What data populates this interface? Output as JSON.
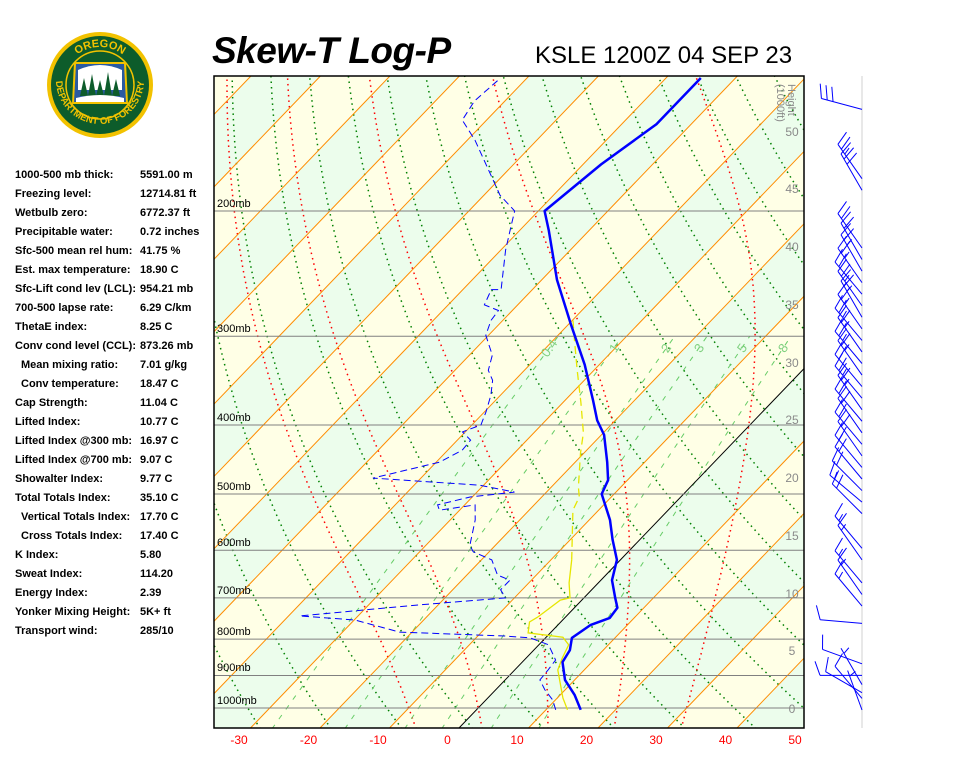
{
  "logo": {
    "top_text": "OREGON",
    "bottom_text": "DEPARTMENT OF FORESTRY"
  },
  "header": {
    "title": "Skew-T Log-P",
    "station": "KSLE 1200Z 04 SEP 23"
  },
  "stats": [
    {
      "label": "1000-500 mb thick:",
      "value": "5591.00 m",
      "indent": false
    },
    {
      "label": "Freezing level:",
      "value": "12714.81 ft",
      "indent": false
    },
    {
      "label": "Wetbulb zero:",
      "value": "6772.37 ft",
      "indent": false
    },
    {
      "label": "Precipitable water:",
      "value": "0.72 inches",
      "indent": false
    },
    {
      "label": "Sfc-500 mean rel hum:",
      "value": "41.75 %",
      "indent": false
    },
    {
      "label": "Est. max temperature:",
      "value": "18.90 C",
      "indent": false
    },
    {
      "label": "Sfc-Lift cond lev (LCL):",
      "value": "954.21 mb",
      "indent": false
    },
    {
      "label": "700-500 lapse rate:",
      "value": "6.29 C/km",
      "indent": false
    },
    {
      "label": "ThetaE index:",
      "value": "8.25 C",
      "indent": false
    },
    {
      "label": "Conv cond level (CCL):",
      "value": "873.26 mb",
      "indent": false
    },
    {
      "label": "Mean mixing ratio:",
      "value": "7.01 g/kg",
      "indent": true
    },
    {
      "label": "Conv temperature:",
      "value": "18.47 C",
      "indent": true
    },
    {
      "label": "Cap Strength:",
      "value": "11.04 C",
      "indent": false
    },
    {
      "label": "Lifted Index:",
      "value": "10.77 C",
      "indent": false
    },
    {
      "label": "Lifted Index @300 mb:",
      "value": "16.97 C",
      "indent": false
    },
    {
      "label": "Lifted Index @700 mb:",
      "value": "9.07 C",
      "indent": false
    },
    {
      "label": "Showalter Index:",
      "value": "9.77 C",
      "indent": false
    },
    {
      "label": "Total Totals Index:",
      "value": "35.10 C",
      "indent": false
    },
    {
      "label": "Vertical Totals Index:",
      "value": "17.70 C",
      "indent": true
    },
    {
      "label": "Cross Totals Index:",
      "value": "17.40 C",
      "indent": true
    },
    {
      "label": "K Index:",
      "value": "5.80",
      "indent": false
    },
    {
      "label": "Sweat Index:",
      "value": "114.20",
      "indent": false
    },
    {
      "label": "Energy Index:",
      "value": "2.39",
      "indent": false
    },
    {
      "label": "Yonker Mixing Height:",
      "value": "5K+ ft",
      "indent": false
    },
    {
      "label": "Transport wind:",
      "value": "285/10",
      "indent": false
    }
  ],
  "colors": {
    "isotherm": "#ff8c00",
    "zero_isotherm": "#000000",
    "band_a": "#ffffe6",
    "band_b": "#ecfdec",
    "dry_adiabat": "#008000",
    "moist_adiabat": "#ff0000",
    "mixing_ratio": "#66cc66",
    "temperature": "#0000ff",
    "dewpoint": "#0000ff",
    "wetbulb": "#e6e600",
    "isobar": "#808080",
    "wind": "#0000ff",
    "logo_green": "#0d5c2b",
    "logo_gold": "#f2c200"
  },
  "chart_data": {
    "type": "skew-t log-p",
    "pressure_levels": [
      {
        "p": 200,
        "label": "200mb"
      },
      {
        "p": 300,
        "label": "300mb"
      },
      {
        "p": 400,
        "label": "400mb"
      },
      {
        "p": 500,
        "label": "500mb"
      },
      {
        "p": 600,
        "label": "600mb"
      },
      {
        "p": 700,
        "label": "700mb"
      },
      {
        "p": 800,
        "label": "800mb"
      },
      {
        "p": 900,
        "label": "900mb"
      },
      {
        "p": 1000,
        "label": "1000mb"
      }
    ],
    "pressure_range_mb": [
      130,
      1065
    ],
    "temperature_ticks_c": [
      -30,
      -20,
      -10,
      0,
      10,
      20,
      30,
      40,
      50
    ],
    "height_axis": {
      "title": "Height",
      "unit": "(1000ft)",
      "ticks": [
        0,
        5,
        10,
        15,
        20,
        25,
        30,
        35,
        40,
        45,
        50
      ]
    },
    "mixing_ratio_lines": [
      {
        "w": 0.4,
        "label": "0.4"
      },
      {
        "w": 1,
        "label": "1"
      },
      {
        "w": 2,
        "label": "2"
      },
      {
        "w": 3,
        "label": "3"
      },
      {
        "w": 5,
        "label": "5"
      },
      {
        "w": 8,
        "label": "8"
      }
    ],
    "temperature": [
      [
        1006,
        15.0
      ],
      [
        959,
        12.1
      ],
      [
        913,
        8.6
      ],
      [
        862,
        5.8
      ],
      [
        829,
        5.2
      ],
      [
        797,
        3.8
      ],
      [
        764,
        4.7
      ],
      [
        747,
        6.5
      ],
      [
        723,
        6.2
      ],
      [
        700,
        4.5
      ],
      [
        661,
        1.6
      ],
      [
        619,
        -0.5
      ],
      [
        580,
        -3.9
      ],
      [
        544,
        -7.0
      ],
      [
        500,
        -11.8
      ],
      [
        478,
        -12.8
      ],
      [
        451,
        -15.4
      ],
      [
        413,
        -19.6
      ],
      [
        394,
        -22.6
      ],
      [
        369,
        -26.0
      ],
      [
        329,
        -32.1
      ],
      [
        289,
        -39.6
      ],
      [
        250,
        -47.8
      ],
      [
        213,
        -55.8
      ],
      [
        200,
        -59.1
      ],
      [
        172,
        -57.4
      ],
      [
        151,
        -55.0
      ],
      [
        130,
        -55.0
      ]
    ],
    "dewpoint": [
      [
        1006,
        11.4
      ],
      [
        974,
        9.6
      ],
      [
        943,
        7.1
      ],
      [
        913,
        5.0
      ],
      [
        884,
        4.8
      ],
      [
        856,
        4.5
      ],
      [
        815,
        1.4
      ],
      [
        797,
        -2.2
      ],
      [
        792,
        -6.1
      ],
      [
        782,
        -21.8
      ],
      [
        752,
        -29.9
      ],
      [
        742,
        -38.4
      ],
      [
        716,
        -22.6
      ],
      [
        700,
        -11.3
      ],
      [
        682,
        -13.1
      ],
      [
        661,
        -13.1
      ],
      [
        650,
        -15.6
      ],
      [
        619,
        -18.5
      ],
      [
        603,
        -22.3
      ],
      [
        590,
        -23.7
      ],
      [
        544,
        -26.4
      ],
      [
        518,
        -28.5
      ],
      [
        527,
        -32.9
      ],
      [
        518,
        -33.9
      ],
      [
        505,
        -30.3
      ],
      [
        497,
        -24.6
      ],
      [
        486,
        -30.6
      ],
      [
        475,
        -46.9
      ],
      [
        451,
        -39.5
      ],
      [
        434,
        -37.9
      ],
      [
        420,
        -38.1
      ],
      [
        409,
        -40.4
      ],
      [
        400,
        -38.7
      ],
      [
        383,
        -39.8
      ],
      [
        363,
        -41.4
      ],
      [
        346,
        -43.2
      ],
      [
        335,
        -45.2
      ],
      [
        319,
        -46.7
      ],
      [
        299,
        -50.4
      ],
      [
        285,
        -51.7
      ],
      [
        276,
        -52.0
      ],
      [
        271,
        -54.8
      ],
      [
        258,
        -55.9
      ],
      [
        258,
        -54.5
      ],
      [
        227,
        -59.3
      ],
      [
        209,
        -62.0
      ],
      [
        200,
        -63.4
      ],
      [
        190,
        -67.7
      ],
      [
        159,
        -78.9
      ],
      [
        149,
        -83.5
      ],
      [
        140,
        -84.4
      ],
      [
        130,
        -83.8
      ]
    ],
    "wetbulb": [
      [
        1006,
        13.1
      ],
      [
        968,
        10.8
      ],
      [
        884,
        6.2
      ],
      [
        851,
        5.2
      ],
      [
        815,
        4.3
      ],
      [
        795,
        2.4
      ],
      [
        784,
        -3.2
      ],
      [
        757,
        -4.5
      ],
      [
        745,
        -4.0
      ],
      [
        705,
        -3.1
      ],
      [
        700,
        -2.0
      ],
      [
        667,
        -4.2
      ],
      [
        619,
        -7.0
      ],
      [
        527,
        -13.7
      ],
      [
        505,
        -14.6
      ],
      [
        489,
        -16.1
      ],
      [
        438,
        -20.5
      ],
      [
        410,
        -22.9
      ],
      [
        372,
        -27.4
      ],
      [
        335,
        -32.4
      ],
      [
        301,
        -37.4
      ],
      [
        285,
        -39.9
      ]
    ],
    "winds_height_kft_dir_kt": [
      [
        0,
        340,
        5
      ],
      [
        1,
        320,
        10
      ],
      [
        1.5,
        300,
        10
      ],
      [
        2.2,
        330,
        5
      ],
      [
        3,
        270,
        10
      ],
      [
        4,
        290,
        10
      ],
      [
        7.5,
        275,
        10
      ],
      [
        9,
        320,
        15
      ],
      [
        10,
        325,
        15
      ],
      [
        11,
        320,
        15
      ],
      [
        13,
        325,
        15
      ],
      [
        14,
        320,
        15
      ],
      [
        17,
        315,
        20
      ],
      [
        18,
        310,
        15
      ],
      [
        19,
        315,
        20
      ],
      [
        20,
        320,
        20
      ],
      [
        21,
        320,
        20
      ],
      [
        22,
        325,
        20
      ],
      [
        23,
        320,
        20
      ],
      [
        24,
        325,
        20
      ],
      [
        25,
        320,
        20
      ],
      [
        26,
        325,
        25
      ],
      [
        27,
        320,
        25
      ],
      [
        28,
        320,
        20
      ],
      [
        29,
        325,
        25
      ],
      [
        30,
        320,
        25
      ],
      [
        31,
        325,
        25
      ],
      [
        32,
        320,
        25
      ],
      [
        33,
        325,
        25
      ],
      [
        34,
        330,
        25
      ],
      [
        35,
        325,
        25
      ],
      [
        36,
        320,
        20
      ],
      [
        37,
        325,
        25
      ],
      [
        38,
        330,
        25
      ],
      [
        39,
        330,
        20
      ],
      [
        40,
        325,
        20
      ],
      [
        45,
        330,
        30
      ],
      [
        46,
        325,
        25
      ],
      [
        52,
        285,
        30
      ]
    ]
  }
}
